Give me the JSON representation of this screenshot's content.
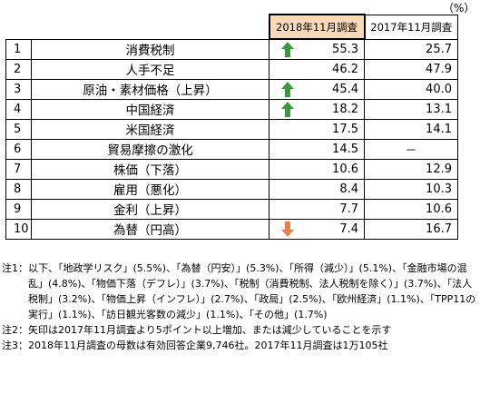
{
  "unit": "（%）",
  "headers": {
    "y2018": "2018年11月調査",
    "y2017": "2017年11月調査"
  },
  "colors": {
    "header_2018_bg": "#fad8b8",
    "arrow_up": "#3a9a3a",
    "arrow_down": "#e8804a"
  },
  "rows": [
    {
      "rank": "1",
      "item": "消費税制",
      "v2018": "55.3",
      "v2017": "25.7",
      "arrow": "up"
    },
    {
      "rank": "2",
      "item": "人手不足",
      "v2018": "46.2",
      "v2017": "47.9",
      "arrow": ""
    },
    {
      "rank": "3",
      "item": "原油・素材価格（上昇）",
      "v2018": "45.4",
      "v2017": "40.0",
      "arrow": "up"
    },
    {
      "rank": "4",
      "item": "中国経済",
      "v2018": "18.2",
      "v2017": "13.1",
      "arrow": "up"
    },
    {
      "rank": "5",
      "item": "米国経済",
      "v2018": "17.5",
      "v2017": "14.1",
      "arrow": ""
    },
    {
      "rank": "6",
      "item": "貿易摩擦の激化",
      "v2018": "14.5",
      "v2017": "－",
      "arrow": ""
    },
    {
      "rank": "7",
      "item": "株価（下落）",
      "v2018": "10.6",
      "v2017": "12.9",
      "arrow": ""
    },
    {
      "rank": "8",
      "item": "雇用（悪化）",
      "v2018": "8.4",
      "v2017": "10.3",
      "arrow": ""
    },
    {
      "rank": "9",
      "item": "金利（上昇）",
      "v2018": "7.7",
      "v2017": "10.6",
      "arrow": ""
    },
    {
      "rank": "10",
      "item": "為替（円高）",
      "v2018": "7.4",
      "v2017": "16.7",
      "arrow": "down"
    }
  ],
  "notes": [
    {
      "key": "注1：",
      "text": "以下、「地政学リスク」(5.5%)、「為替（円安）」(5.3%)、「所得（減少）」(5.1%)、「金融市場の混乱」(4.8%)、「物価下落（デフレ）」(3.7%)、「税制（消費税制、法人税制を除く）」(3.7%)、「法人税制」(3.2%)、「物価上昇（インフレ）」(2.7%)、「政局」(2.5%)、「欧州経済」(1.1%)、「TPP11の実行」(1.1%)、「訪日観光客数の減少」(1.1%)、「その他」(1.7%)"
    },
    {
      "key": "注2：",
      "text": "矢印は2017年11月調査より5ポイント以上増加、または減少していることを示す"
    },
    {
      "key": "注3：",
      "text": "2018年11月調査の母数は有効回答企業9,746社。2017年11月調査は1万105社"
    }
  ]
}
